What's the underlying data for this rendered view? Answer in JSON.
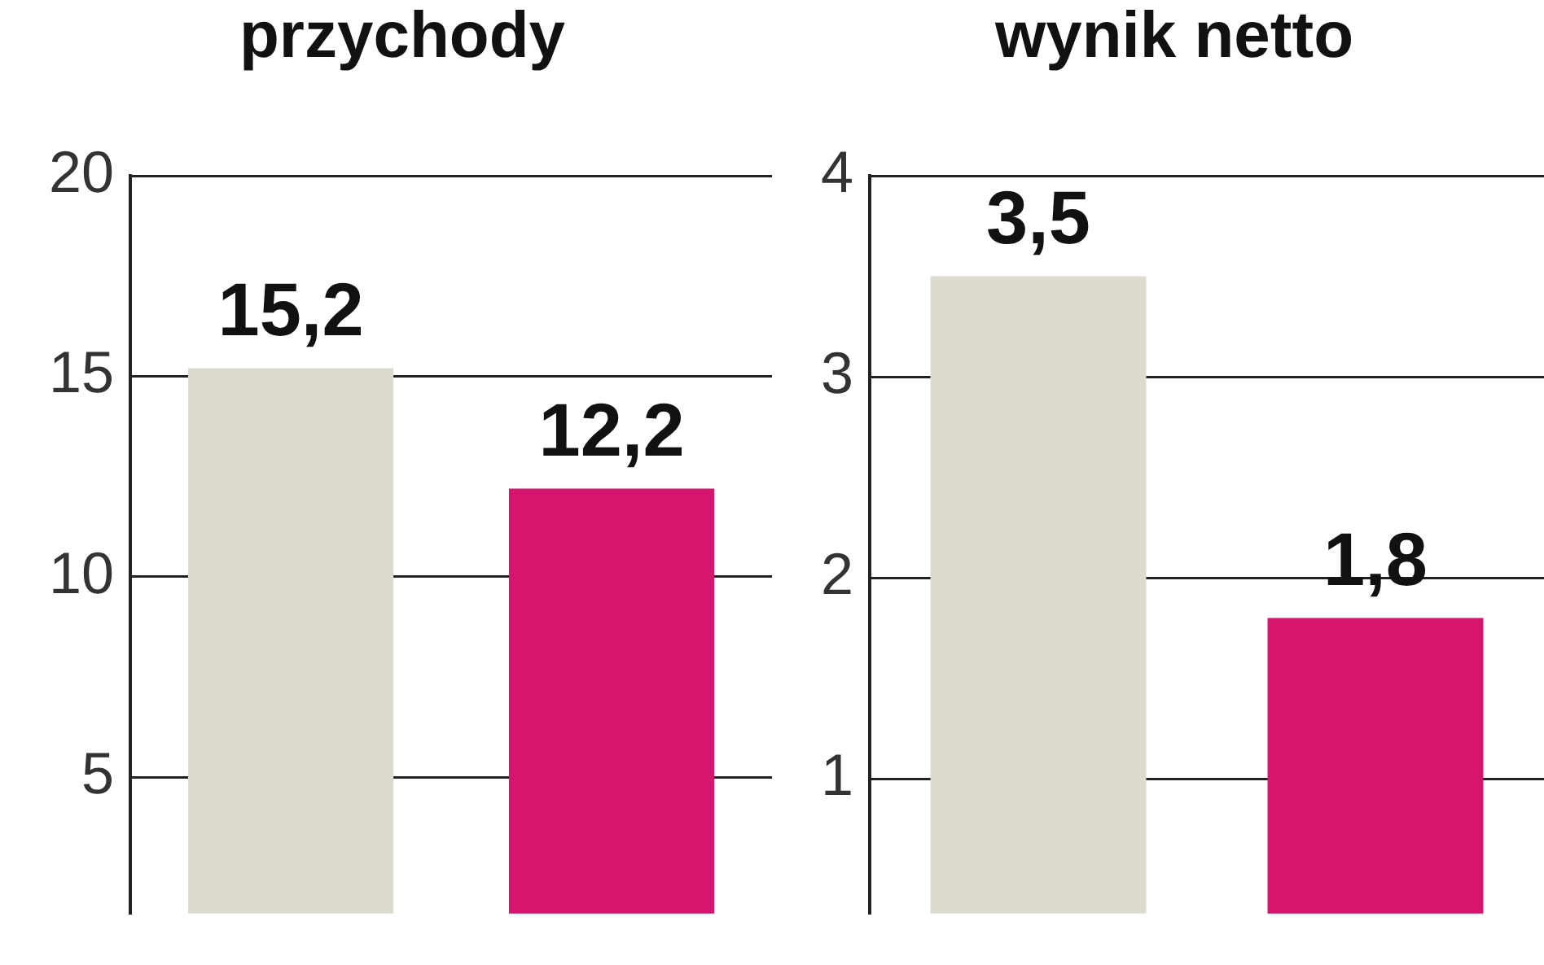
{
  "chart_data": [
    {
      "type": "bar",
      "title": "przychody",
      "categories": [
        null,
        null
      ],
      "values": [
        15.2,
        12.2
      ],
      "colors": [
        "#dddbd0",
        "#d6156f"
      ],
      "value_labels": [
        "15,2",
        "12,2"
      ],
      "ylim": [
        1.6,
        20
      ],
      "yticks": [
        5,
        10,
        15,
        20
      ],
      "grid": "y",
      "tick_labels": "y"
    },
    {
      "type": "bar",
      "title": "wynik netto",
      "categories": [
        null,
        null
      ],
      "values": [
        3.5,
        1.8
      ],
      "colors": [
        "#dddbd0",
        "#d6156f"
      ],
      "value_labels": [
        "3,5",
        "1,8"
      ],
      "ylim": [
        0.33,
        4
      ],
      "yticks": [
        1,
        2,
        3,
        4
      ],
      "grid": "y",
      "tick_labels": "y"
    }
  ]
}
